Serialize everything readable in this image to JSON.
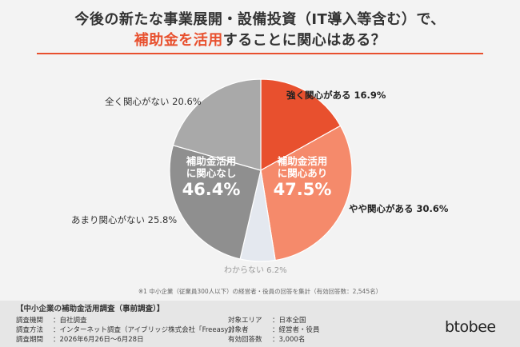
{
  "title": {
    "line1": "今後の新たな事業展開・設備投資（IT導入等含む）で、",
    "line2_highlight": "補助金を活用",
    "line2_rest": "することに関心はある？"
  },
  "chart_data": {
    "type": "pie",
    "slices": [
      {
        "label": "強く関心がある",
        "value": 16.9,
        "color": "#e8502e"
      },
      {
        "label": "やや関心がある",
        "value": 30.6,
        "color": "#f58a6b"
      },
      {
        "label": "わからない",
        "value": 6.2,
        "color": "#e4e8ef"
      },
      {
        "label": "あまり関心がない",
        "value": 25.8,
        "color": "#8f8f8f"
      },
      {
        "label": "全く関心がない",
        "value": 20.6,
        "color": "#a9a9a9"
      }
    ],
    "slice_labels": [
      "強く関心がある 16.9%",
      "やや関心がある 30.6%",
      "わからない 6.2%",
      "あまり関心がない 25.8%",
      "全く関心がない 20.6%"
    ],
    "groups": [
      {
        "caption1": "補助金活用",
        "caption2": "に関心あり",
        "percent": "47.5%"
      },
      {
        "caption1": "補助金活用",
        "caption2": "に関心なし",
        "percent": "46.4%"
      }
    ]
  },
  "note": "※1 中小企業（従業員300人以下）の経営者・役員の回答を集計（有効回答数：2,545名）",
  "survey": {
    "heading": "【中小企業の補助金活用調査（事前調査）】",
    "rows": [
      {
        "key": "調査機関",
        "value": "：自社調査"
      },
      {
        "key": "調査方法",
        "value": "：インターネット調査（アイブリッジ株式会社「Freeasy」）"
      },
      {
        "key": "調査期間",
        "value": "：2026年6月26日〜6月28日"
      }
    ],
    "rows_right": [
      {
        "key": "対象エリア",
        "value": "：日本全国"
      },
      {
        "key": "対象者",
        "value": "：経営者・役員"
      },
      {
        "key": "有効回答数",
        "value": "：3,000名"
      }
    ]
  },
  "logo": "btobee"
}
